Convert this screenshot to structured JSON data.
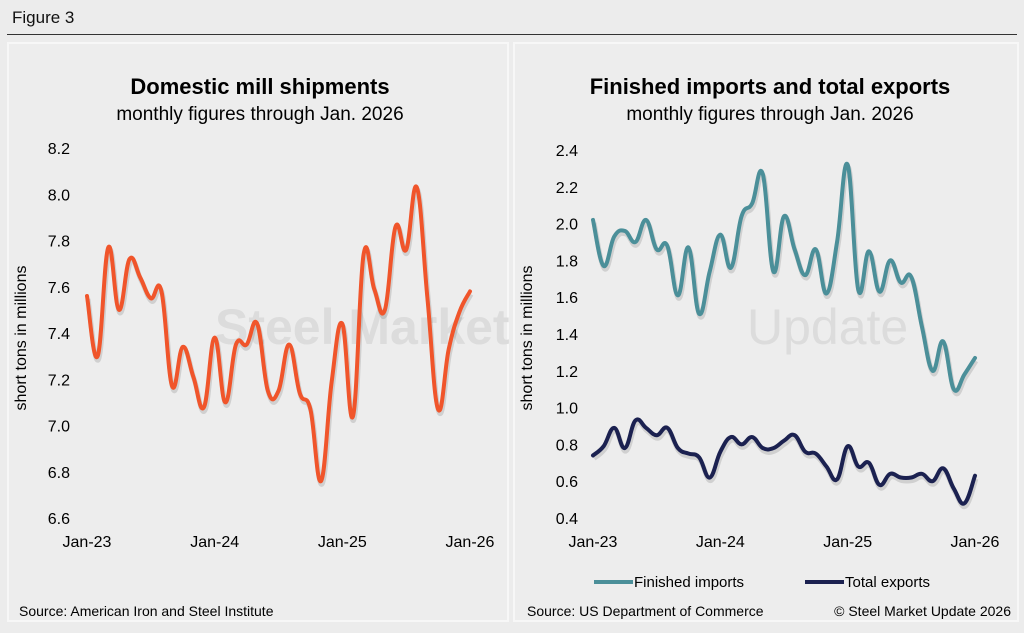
{
  "figure": {
    "title": "Figure 3",
    "copyright": "© Steel Market Update 2026",
    "watermark": [
      "Steel Market",
      "Update"
    ]
  },
  "colors": {
    "shipments": "#f0552b",
    "imports": "#4b8f99",
    "exports": "#1b2150"
  },
  "chart_data": [
    {
      "type": "line",
      "title": "Domestic mill shipments",
      "subtitle": "monthly figures through Jan. 2026",
      "xlabel": "",
      "ylabel": "short tons in millions",
      "ylim": [
        6.6,
        8.2
      ],
      "yticks": [
        "8.2",
        "8.0",
        "7.8",
        "7.6",
        "7.4",
        "7.2",
        "7.0",
        "6.8",
        "6.6"
      ],
      "xticks": [
        "Jan-23",
        "Jan-24",
        "Jan-25",
        "Jan-26"
      ],
      "x_start": "Jan-23",
      "x_end": "Jan-26",
      "grid": false,
      "source": "Source: American Iron and Steel Institute",
      "series": [
        {
          "name": "Domestic mill shipments",
          "values": [
            7.56,
            7.3,
            7.77,
            7.5,
            7.72,
            7.64,
            7.55,
            7.58,
            7.17,
            7.34,
            7.21,
            7.08,
            7.38,
            7.1,
            7.35,
            7.35,
            7.44,
            7.15,
            7.15,
            7.35,
            7.14,
            7.07,
            6.76,
            7.19,
            7.44,
            7.04,
            7.74,
            7.59,
            7.5,
            7.86,
            7.76,
            8.03,
            7.55,
            7.07,
            7.33,
            7.49,
            7.58
          ]
        }
      ]
    },
    {
      "type": "line",
      "title": "Finished imports and total exports",
      "subtitle": "monthly figures through Jan. 2026",
      "xlabel": "",
      "ylabel": "short tons in millions",
      "ylim": [
        0.4,
        2.4
      ],
      "yticks": [
        "2.4",
        "2.2",
        "2.0",
        "1.8",
        "1.6",
        "1.4",
        "1.2",
        "1.0",
        "0.8",
        "0.6",
        "0.4"
      ],
      "xticks": [
        "Jan-23",
        "Jan-24",
        "Jan-25",
        "Jan-26"
      ],
      "x_start": "Jan-23",
      "x_end": "Jan-26",
      "grid": false,
      "legend": "bottom",
      "source": "Source: US Department of Commerce",
      "series": [
        {
          "name": "Finished imports",
          "values": [
            2.02,
            1.77,
            1.93,
            1.96,
            1.9,
            2.02,
            1.86,
            1.88,
            1.61,
            1.87,
            1.51,
            1.74,
            1.94,
            1.76,
            2.04,
            2.11,
            2.27,
            1.74,
            2.04,
            1.86,
            1.72,
            1.86,
            1.62,
            1.9,
            2.32,
            1.64,
            1.85,
            1.63,
            1.8,
            1.68,
            1.71,
            1.44,
            1.2,
            1.36,
            1.1,
            1.18,
            1.27
          ]
        },
        {
          "name": "Total exports",
          "values": [
            0.74,
            0.79,
            0.89,
            0.78,
            0.93,
            0.89,
            0.85,
            0.89,
            0.78,
            0.75,
            0.73,
            0.62,
            0.76,
            0.84,
            0.8,
            0.84,
            0.78,
            0.78,
            0.82,
            0.85,
            0.76,
            0.75,
            0.68,
            0.61,
            0.79,
            0.68,
            0.7,
            0.58,
            0.64,
            0.62,
            0.62,
            0.64,
            0.6,
            0.67,
            0.56,
            0.48,
            0.63
          ]
        }
      ]
    }
  ]
}
